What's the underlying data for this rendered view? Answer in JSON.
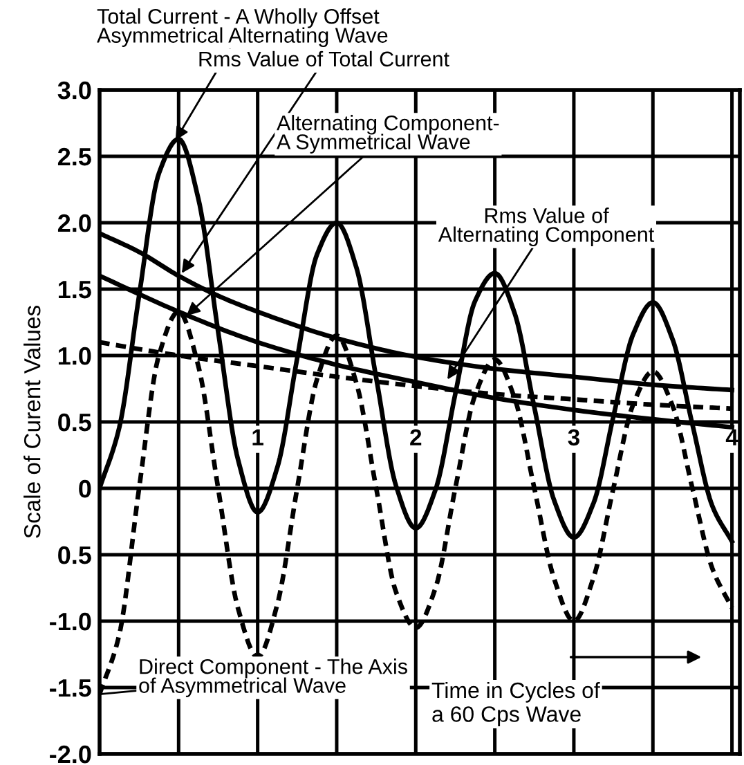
{
  "chart_data": {
    "type": "line",
    "xlabel": "Time in Cycles of\na 60 Cps Wave",
    "ylabel": "Scale of Curent Values",
    "xlim": [
      0,
      4.05
    ],
    "ylim": [
      -2.0,
      3.0
    ],
    "xticks": [
      {
        "value": 0.5,
        "label": null
      },
      1,
      {
        "value": 1.5,
        "label": null
      },
      2,
      {
        "value": 2.5,
        "label": null
      },
      3,
      {
        "value": 3.5,
        "label": null
      },
      4
    ],
    "yticks": [
      {
        "value": -2.0,
        "label": "-2.0"
      },
      {
        "value": -1.5,
        "label": "-1.5"
      },
      {
        "value": -1.0,
        "label": "-1.0"
      },
      {
        "value": -0.5,
        "label": "0.5"
      },
      0,
      {
        "value": 0.5,
        "label": "0.5"
      },
      {
        "value": 1.0,
        "label": "1.0"
      },
      {
        "value": 1.5,
        "label": "1.5"
      },
      {
        "value": 2.0,
        "label": "2.0"
      },
      {
        "value": 2.5,
        "label": "2.5"
      },
      {
        "value": 3.0,
        "label": "3.0"
      }
    ],
    "grid": true,
    "series": [
      {
        "color": "#000000",
        "line_style": "solid",
        "x": [
          0,
          0.125,
          0.25,
          0.375,
          0.5,
          0.625,
          0.75,
          0.875,
          1.0,
          1.125,
          1.25,
          1.375,
          1.5,
          1.625,
          1.75,
          1.875,
          2.0,
          2.125,
          2.25,
          2.375,
          2.5,
          2.625,
          2.75,
          2.875,
          3.0,
          3.125,
          3.25,
          3.375,
          3.5,
          3.625,
          3.75,
          3.875,
          4.0
        ],
        "values": [
          0,
          0.46,
          1.45,
          2.37,
          2.63,
          2.18,
          1.18,
          0.22,
          -0.18,
          0.16,
          0.98,
          1.76,
          2.0,
          1.66,
          0.83,
          0.02,
          -0.3,
          -0.01,
          0.71,
          1.41,
          1.62,
          1.32,
          0.61,
          -0.09,
          -0.37,
          -0.11,
          0.54,
          1.16,
          1.4,
          1.12,
          0.48,
          -0.13,
          -0.4
        ]
      },
      {
        "color": "#000000",
        "line_style": "dashed",
        "x": [
          0,
          0.125,
          0.25,
          0.375,
          0.5,
          0.625,
          0.75,
          0.875,
          1.0,
          1.125,
          1.25,
          1.375,
          1.5,
          1.625,
          1.75,
          1.875,
          2.0,
          2.125,
          2.25,
          2.375,
          2.5,
          2.625,
          2.75,
          2.875,
          3.0,
          3.125,
          3.25,
          3.375,
          3.5,
          3.625,
          3.75,
          3.875,
          4.0
        ],
        "values": [
          -1.55,
          -1.1,
          0,
          1.0,
          1.33,
          0.92,
          0,
          -0.9,
          -1.27,
          -0.87,
          0,
          0.82,
          1.15,
          0.79,
          0,
          -0.78,
          -1.05,
          -0.75,
          0,
          0.7,
          0.97,
          0.68,
          0,
          -0.68,
          -1.0,
          -0.67,
          0,
          0.63,
          0.88,
          0.62,
          0,
          -0.6,
          -0.9
        ]
      },
      {
        "color": "#000000",
        "line_style": "solid",
        "x": [
          0,
          0.25,
          0.5,
          0.75,
          1,
          1.5,
          2,
          2.5,
          3,
          3.5,
          4
        ],
        "values": [
          1.92,
          1.78,
          1.6,
          1.45,
          1.33,
          1.13,
          0.99,
          0.9,
          0.84,
          0.78,
          0.74
        ]
      },
      {
        "color": "#000000",
        "line_style": "solid",
        "x": [
          0,
          0.5,
          1,
          1.5,
          2,
          2.5,
          3,
          3.5,
          4
        ],
        "values": [
          1.6,
          1.33,
          1.1,
          0.93,
          0.8,
          0.68,
          0.59,
          0.52,
          0.46
        ]
      },
      {
        "color": "#000000",
        "line_style": "dashed",
        "x": [
          0,
          0.5,
          1,
          1.5,
          2,
          2.5,
          3,
          3.5,
          4
        ],
        "values": [
          1.1,
          1.0,
          0.92,
          0.84,
          0.77,
          0.71,
          0.67,
          0.63,
          0.6
        ]
      }
    ],
    "annotations": [
      {
        "text": "Total Current - A Wholly Offset\nAsymmetrical Alternating Wave",
        "x": 0.48,
        "y": 2.62
      },
      {
        "text": "Rms Value of Total Current",
        "x": 0.52,
        "y": 1.62
      },
      {
        "text": "Alternating Component-\nA Symmetrical Wave",
        "x": 0.55,
        "y": 1.3
      },
      {
        "text": "Rms Value of\nAlternating Component",
        "x": 2.2,
        "y": 0.82
      },
      {
        "text": "Direct Component - The Axis\nof Asymmetrical Wave",
        "x": 0,
        "y": -1.55
      }
    ]
  }
}
